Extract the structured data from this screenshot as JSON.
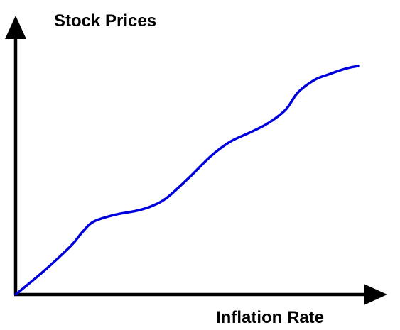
{
  "chart_data": {
    "type": "line",
    "title": "",
    "ylabel": "Stock Prices",
    "xlabel": "Inflation Rate",
    "xlim": [
      0,
      100
    ],
    "ylim": [
      0,
      100
    ],
    "grid": false,
    "ticks": false,
    "series": [
      {
        "name": "",
        "color": "#0000dd",
        "x": [
          0,
          7.8,
          15.6,
          18.8,
          22.0,
          28.0,
          34.0,
          38.0,
          42.5,
          49.0,
          55.0,
          60.2,
          66.0,
          71.0,
          76.0,
          79.4,
          84.0,
          88.0,
          93.0,
          96.4
        ],
        "y": [
          0,
          8.1,
          17.2,
          22.0,
          25.7,
          28.1,
          29.5,
          31.0,
          34.0,
          41.4,
          48.8,
          53.7,
          57.1,
          60.3,
          65.1,
          71.1,
          75.5,
          77.5,
          79.6,
          80.5
        ]
      }
    ]
  }
}
